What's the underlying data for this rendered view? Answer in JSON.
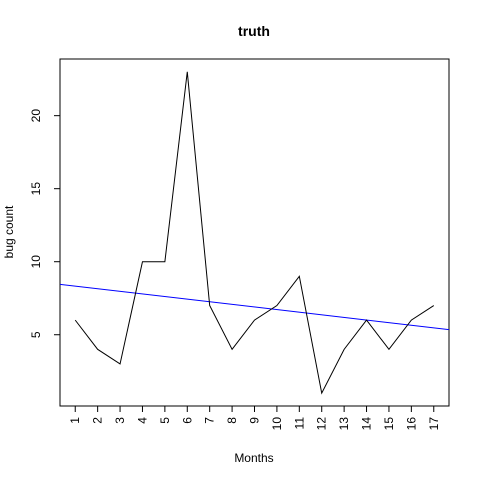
{
  "chart_data": {
    "type": "line",
    "title": "truth",
    "xlabel": "Months",
    "ylabel": "bug count",
    "x": [
      1,
      2,
      3,
      4,
      5,
      6,
      7,
      8,
      9,
      10,
      11,
      12,
      13,
      14,
      15,
      16,
      17
    ],
    "x_tick_labels": [
      "1",
      "2",
      "3",
      "4",
      "5",
      "6",
      "7",
      "8",
      "9",
      "10",
      "11",
      "12",
      "13",
      "14",
      "15",
      "16",
      "17"
    ],
    "y_ticks": [
      5,
      10,
      15,
      20
    ],
    "y_tick_labels": [
      "5",
      "10",
      "15",
      "20"
    ],
    "xlim": [
      0.32,
      17.68
    ],
    "ylim": [
      0.12,
      23.88
    ],
    "grid": false,
    "series": [
      {
        "values": [
          6,
          4,
          3,
          10,
          10,
          23,
          7,
          4,
          6,
          7,
          9,
          1,
          4,
          6,
          4,
          6,
          7
        ],
        "color": "#000000"
      }
    ],
    "trend_line": {
      "color": "#0000ff",
      "points": [
        {
          "x": 0.32,
          "y": 8.45
        },
        {
          "x": 17.68,
          "y": 5.35
        }
      ]
    }
  }
}
